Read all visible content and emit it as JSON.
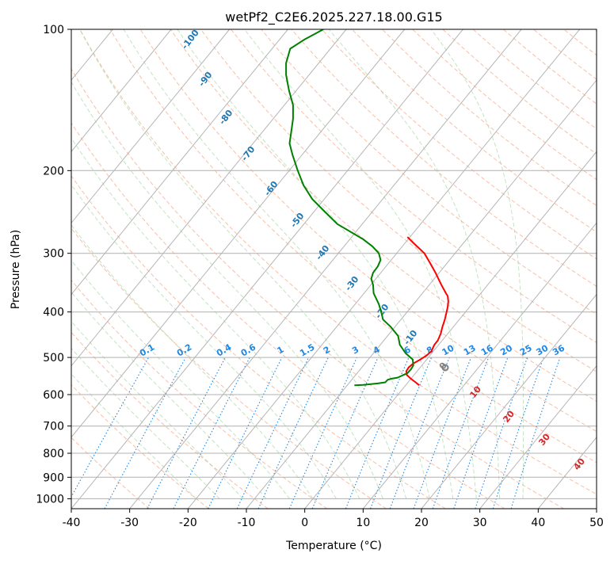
{
  "chart_data": {
    "type": "skew-t",
    "title": "wetPf2_C2E6.2025.227.18.00.G15",
    "xlabel": "Temperature (°C)",
    "ylabel": "Pressure (hPa)",
    "xlim": [
      -40,
      50
    ],
    "ylim": [
      1050,
      100
    ],
    "x_ticks": [
      "-40",
      "-30",
      "-20",
      "-10",
      "0",
      "10",
      "20",
      "30",
      "40",
      "50"
    ],
    "y_ticks": [
      "100",
      "200",
      "300",
      "400",
      "500",
      "600",
      "700",
      "800",
      "900",
      "1000"
    ],
    "grid": true,
    "series": [
      {
        "color": "#ff0000",
        "x": [
          19.6,
          19.0,
          18.2,
          17.5,
          17.4,
          17.8,
          18.6,
          19.8,
          20.9,
          21.7,
          22.2,
          22.8,
          23.3,
          23.6,
          24.0,
          24.3,
          24.5,
          24.6,
          24.5,
          24.2,
          23.4,
          22.4,
          21.5,
          20.5,
          18.6,
          17.6
        ],
        "y": [
          573,
          565,
          555,
          545,
          535,
          525,
          515,
          505,
          495,
          485,
          470,
          460,
          445,
          430,
          415,
          400,
          390,
          380,
          370,
          365,
          350,
          330,
          315,
          300,
          285,
          277
        ]
      },
      {
        "color": "#008000",
        "x": [
          8.5,
          10.0,
          12.5,
          13.8,
          14.2,
          14.8,
          15.9,
          17.6,
          18.2,
          18.6,
          18.5,
          17.3,
          16.3,
          16.0,
          14.7,
          13.4,
          13.1,
          12.7,
          11.8,
          11.7,
          11.4,
          11.7,
          12.5,
          13.0,
          12.7,
          11.6,
          10.0,
          5.6,
          3.5,
          1.3,
          -0.2,
          -1.2,
          -2.1,
          -2.6,
          -2.3,
          -2.0,
          -2.0,
          -2.7,
          -3.2,
          -3.2,
          -2.5,
          0.0,
          3.2
        ],
        "y": [
          573,
          572,
          568,
          565,
          558,
          555,
          552,
          540,
          530,
          520,
          505,
          490,
          470,
          450,
          430,
          415,
          400,
          385,
          365,
          350,
          340,
          330,
          320,
          310,
          300,
          290,
          280,
          260,
          245,
          230,
          215,
          200,
          185,
          175,
          165,
          155,
          145,
          135,
          125,
          118,
          110,
          105,
          100
        ]
      }
    ],
    "annotations": {
      "isotherm_labels": [
        "-100",
        "-90",
        "-80",
        "-70",
        "-60",
        "-50",
        "-40",
        "-30",
        "-20",
        "-10",
        "0",
        "10",
        "20",
        "30",
        "40"
      ],
      "mixing_ratio_labels": [
        "0.1",
        "0.2",
        "0.4",
        "0.6",
        "1",
        "1.5",
        "2",
        "3",
        "4",
        "6",
        "8",
        "10",
        "13",
        "16",
        "20",
        "25",
        "30",
        "36"
      ]
    }
  }
}
